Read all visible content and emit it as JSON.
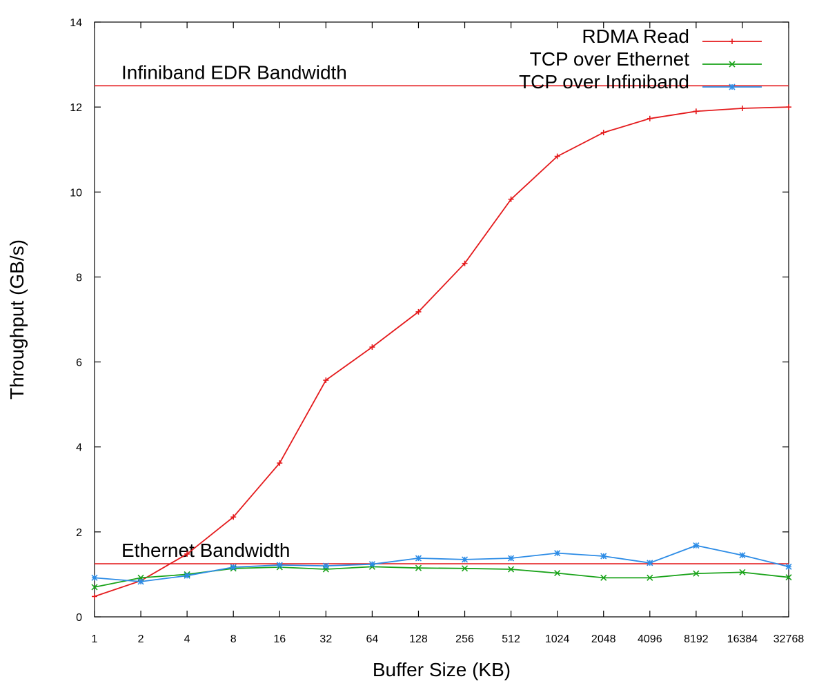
{
  "chart_data": {
    "type": "line",
    "title": "",
    "xlabel": "Buffer Size (KB)",
    "ylabel": "Throughput (GB/s)",
    "x_scale": "log2",
    "categories": [
      "1",
      "2",
      "4",
      "8",
      "16",
      "32",
      "64",
      "128",
      "256",
      "512",
      "1024",
      "2048",
      "4096",
      "8192",
      "16384",
      "32768"
    ],
    "ylim": [
      0,
      14
    ],
    "yticks": [
      0,
      2,
      4,
      6,
      8,
      10,
      12,
      14
    ],
    "grid": false,
    "legend_position": "top-right",
    "series": [
      {
        "name": "RDMA Read",
        "color": "#e41a1c",
        "marker": "plus",
        "values": [
          0.48,
          0.85,
          1.48,
          2.35,
          3.62,
          5.57,
          6.35,
          7.18,
          8.32,
          9.83,
          10.84,
          11.4,
          11.73,
          11.9,
          11.97,
          12.0
        ]
      },
      {
        "name": "TCP over Ethernet",
        "color": "#1aa31a",
        "marker": "x",
        "values": [
          0.7,
          0.92,
          1.0,
          1.14,
          1.17,
          1.12,
          1.18,
          1.15,
          1.14,
          1.12,
          1.03,
          0.92,
          0.92,
          1.02,
          1.05,
          0.93
        ]
      },
      {
        "name": "TCP over Infiniband",
        "color": "#2d8ce6",
        "marker": "star",
        "values": [
          0.92,
          0.83,
          0.97,
          1.17,
          1.22,
          1.2,
          1.24,
          1.38,
          1.35,
          1.38,
          1.5,
          1.43,
          1.27,
          1.68,
          1.45,
          1.18
        ]
      }
    ],
    "reference_lines": [
      {
        "label": "Infiniband EDR Bandwidth",
        "y": 12.5,
        "color": "#e41a1c"
      },
      {
        "label": "Ethernet Bandwidth",
        "y": 1.25,
        "color": "#e41a1c"
      }
    ]
  }
}
